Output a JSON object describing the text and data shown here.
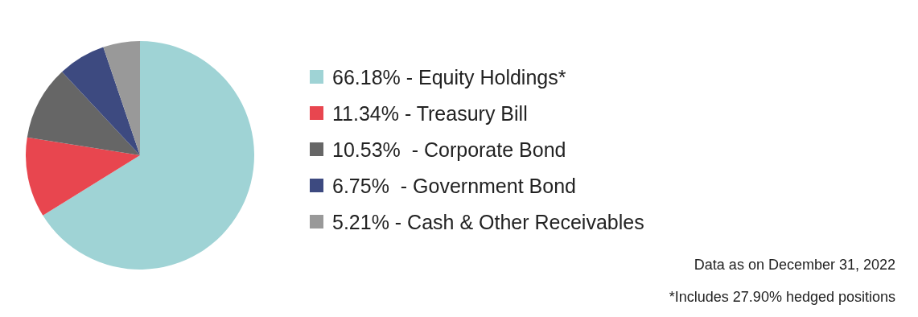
{
  "chart_data": {
    "type": "pie",
    "categories": [
      "66.18% - Equity Holdings*",
      "11.34% - Treasury Bill",
      "10.53%  - Corporate Bond",
      "6.75%  - Government Bond",
      "5.21% - Cash & Other Receivables"
    ],
    "values": [
      66.18,
      11.34,
      10.53,
      6.75,
      5.21
    ],
    "colors": [
      "#9fd3d5",
      "#e8464f",
      "#666666",
      "#3d4a80",
      "#999999"
    ],
    "legend": "right",
    "annotations": [
      "Data as on December 31, 2022",
      "*Includes 27.90% hedged positions"
    ]
  }
}
